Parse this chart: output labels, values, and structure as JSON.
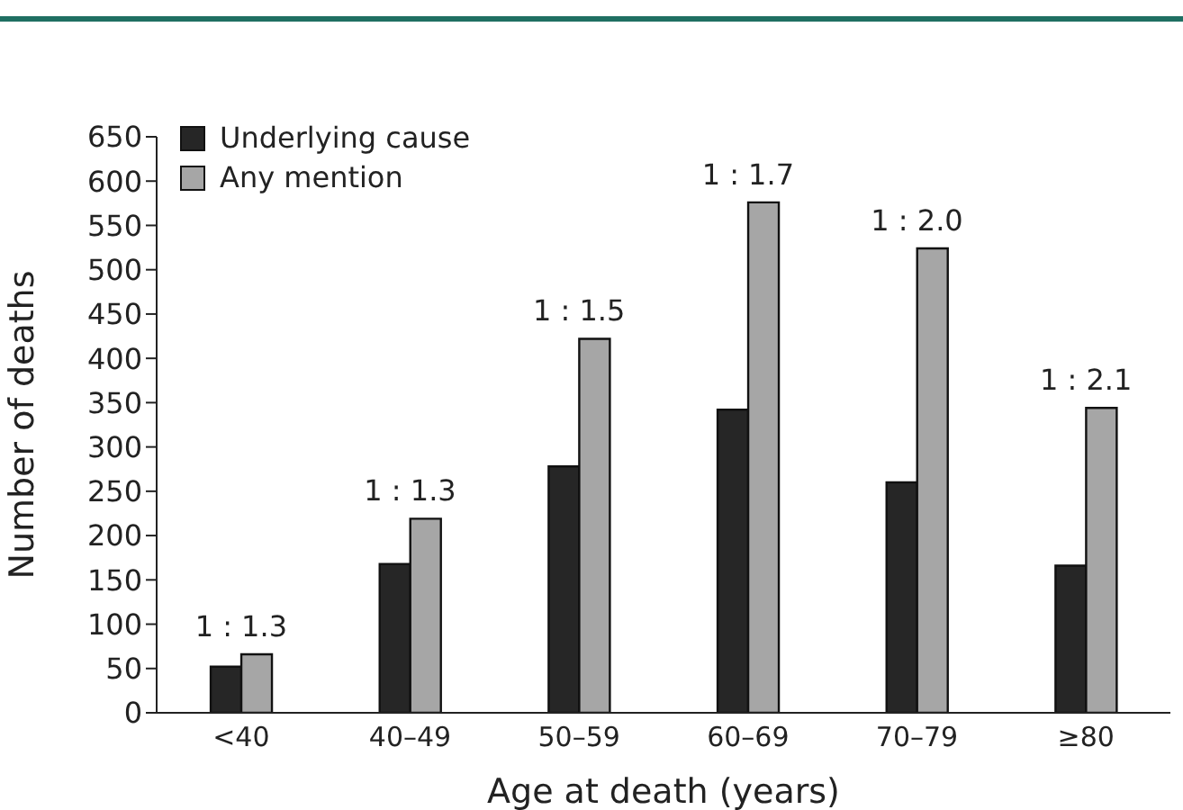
{
  "chart_data": {
    "type": "bar",
    "xlabel": "Age at death (years)",
    "ylabel": "Number of deaths",
    "categories": [
      "<40",
      "40–49",
      "50–59",
      "60–69",
      "70–79",
      "≥80"
    ],
    "series": [
      {
        "name": "Underlying cause",
        "color": "#262626",
        "values": [
          52,
          168,
          278,
          342,
          260,
          166
        ]
      },
      {
        "name": "Any mention",
        "color": "#a6a6a6",
        "values": [
          66,
          219,
          422,
          576,
          524,
          344
        ]
      }
    ],
    "ylim": [
      0,
      650
    ],
    "yticks": [
      0,
      50,
      100,
      150,
      200,
      250,
      300,
      350,
      400,
      450,
      500,
      550,
      600,
      650
    ],
    "grid": false,
    "legend": "top left",
    "annotations": [
      {
        "text": "1 : 1.3",
        "x": "<40",
        "y": 66
      },
      {
        "text": "1 : 1.3",
        "x": "40–49",
        "y": 219
      },
      {
        "text": "1 : 1.5",
        "x": "50–59",
        "y": 422
      },
      {
        "text": "1 : 1.7",
        "x": "60–69",
        "y": 576
      },
      {
        "text": "1 : 2.0",
        "x": "70–79",
        "y": 524
      },
      {
        "text": "1 : 2.1",
        "x": "≥80",
        "y": 344
      }
    ]
  }
}
